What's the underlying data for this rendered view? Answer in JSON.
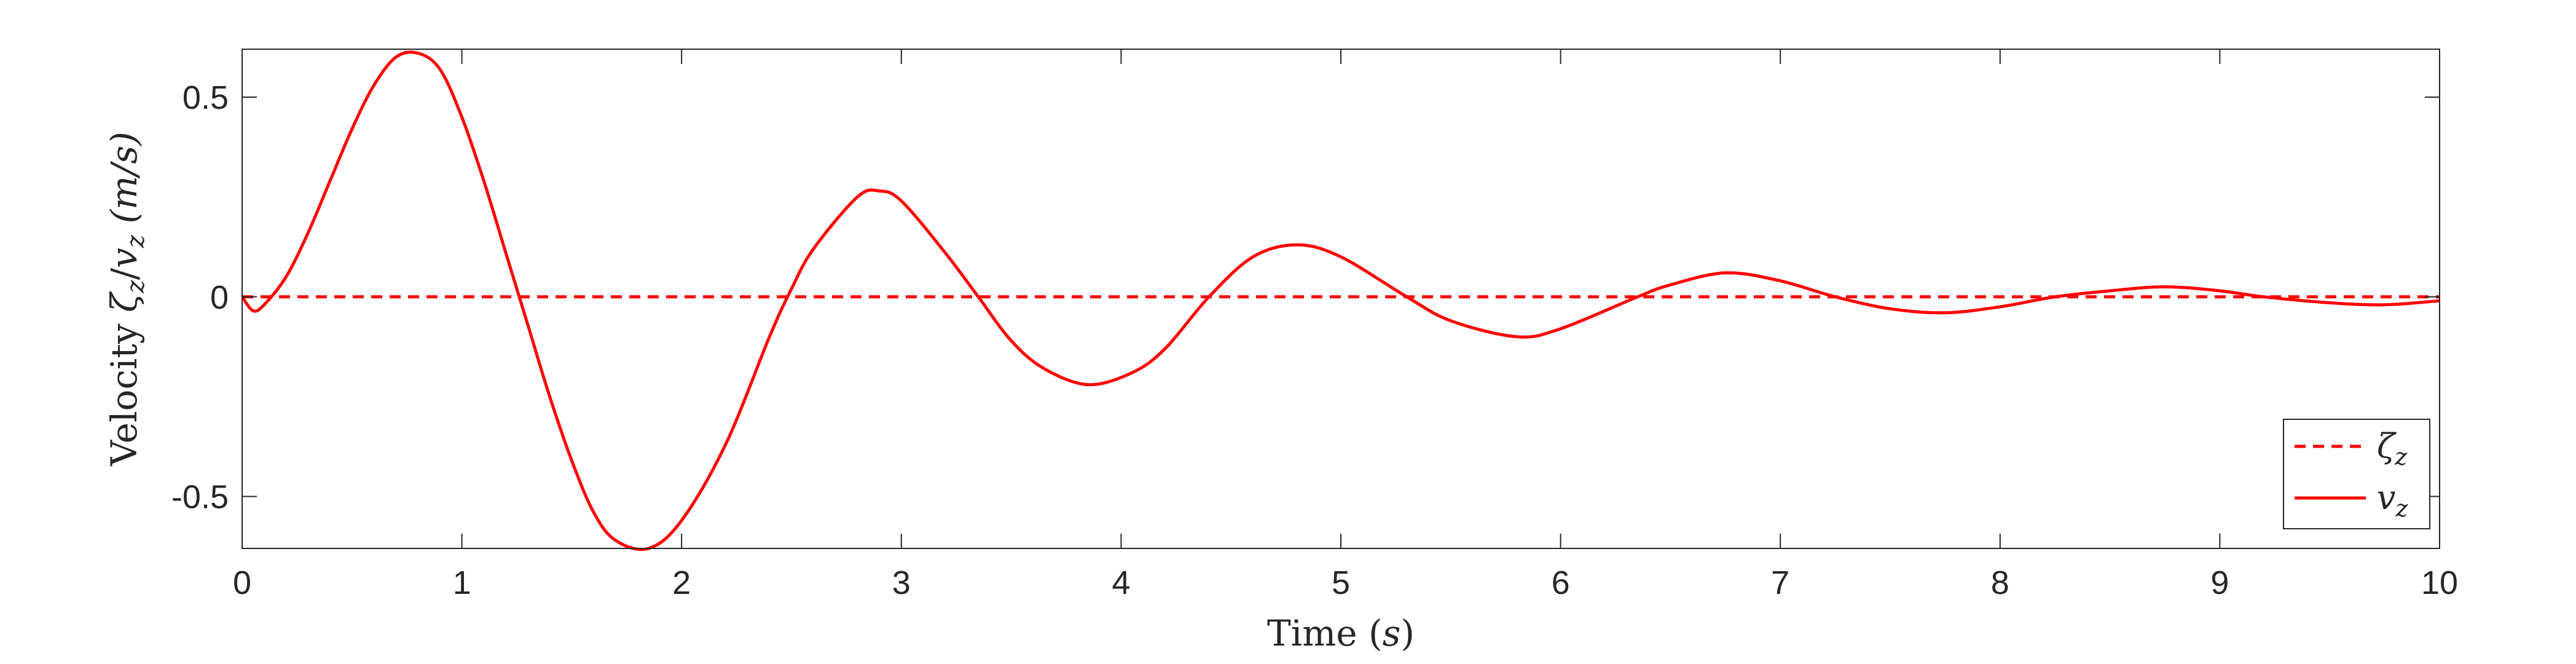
{
  "chart_data": {
    "type": "line",
    "xlabel": "Time (s)",
    "ylabel": "Velocity ζz/vz (m/s)",
    "xlim": [
      0,
      10
    ],
    "ylim": [
      -0.63,
      0.62
    ],
    "xticks": [
      0,
      1,
      2,
      3,
      4,
      5,
      6,
      7,
      8,
      9,
      10
    ],
    "xtick_labels": [
      "0",
      "1",
      "2",
      "3",
      "4",
      "5",
      "6",
      "7",
      "8",
      "9",
      "10"
    ],
    "yticks": [
      -0.5,
      0,
      0.5
    ],
    "ytick_labels": [
      "-0.5",
      "0",
      "0.5"
    ],
    "grid": false,
    "legend_position": "bottom-right",
    "series": [
      {
        "name": "ζz",
        "style": "dashed",
        "color": "#ff0000",
        "x": [
          0,
          10
        ],
        "y": [
          0,
          0
        ]
      },
      {
        "name": "vz",
        "style": "solid",
        "color": "#ff0000",
        "x": [
          0,
          0.05,
          0.1,
          0.2,
          0.3,
          0.4,
          0.5,
          0.6,
          0.7,
          0.8,
          0.9,
          1.0,
          1.1,
          1.2,
          1.3,
          1.4,
          1.5,
          1.6,
          1.7,
          1.85,
          2.0,
          2.2,
          2.4,
          2.5,
          2.6,
          2.8,
          2.9,
          3.0,
          3.2,
          3.35,
          3.5,
          3.65,
          3.85,
          4.05,
          4.2,
          4.4,
          4.6,
          4.8,
          5.0,
          5.3,
          5.5,
          5.8,
          6.0,
          6.35,
          6.5,
          6.75,
          7.0,
          7.25,
          7.5,
          7.75,
          8.0,
          8.25,
          8.5,
          8.75,
          9.0,
          9.2,
          9.5,
          9.75,
          10.0
        ],
        "y": [
          0,
          -0.035,
          -0.02,
          0.05,
          0.16,
          0.29,
          0.42,
          0.53,
          0.6,
          0.61,
          0.57,
          0.45,
          0.29,
          0.11,
          -0.07,
          -0.25,
          -0.41,
          -0.54,
          -0.61,
          -0.63,
          -0.56,
          -0.37,
          -0.1,
          0.02,
          0.12,
          0.25,
          0.265,
          0.24,
          0.11,
          0.0,
          -0.11,
          -0.18,
          -0.22,
          -0.19,
          -0.13,
          0.0,
          0.1,
          0.13,
          0.1,
          0.0,
          -0.06,
          -0.1,
          -0.08,
          0.0,
          0.03,
          0.06,
          0.04,
          0.0,
          -0.03,
          -0.04,
          -0.025,
          0.0,
          0.015,
          0.025,
          0.015,
          0.0,
          -0.015,
          -0.02,
          -0.01
        ]
      }
    ]
  }
}
